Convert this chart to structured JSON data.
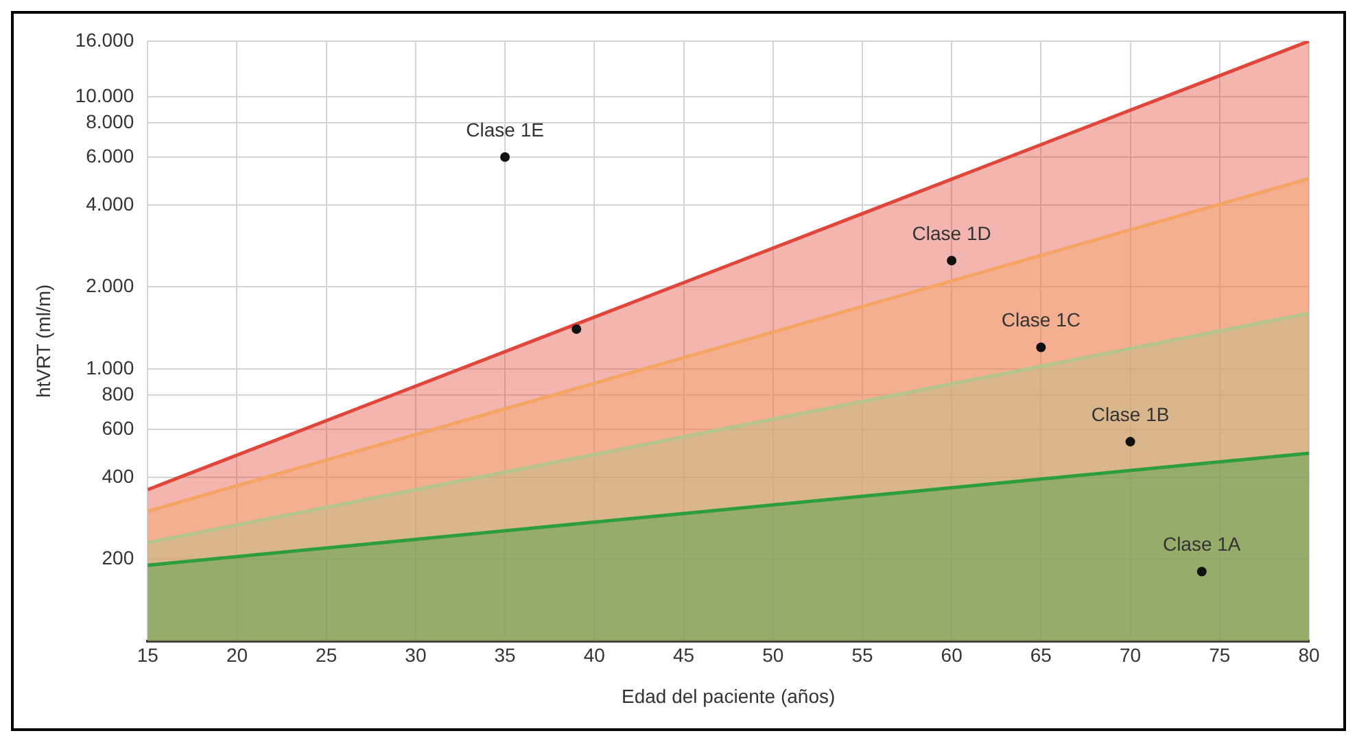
{
  "chart_data": {
    "type": "area",
    "xlabel": "Edad del paciente (años)",
    "ylabel": "htVRT (ml/m)",
    "log": "y",
    "grid": true,
    "legend": false,
    "xlim": [
      15,
      80
    ],
    "xticks": [
      15,
      20,
      25,
      30,
      35,
      40,
      45,
      50,
      55,
      60,
      65,
      70,
      75,
      80
    ],
    "ylim": [
      100,
      16000
    ],
    "yticks": [
      200,
      400,
      600,
      800,
      {
        "value": 1000,
        "label": "1.000"
      },
      {
        "value": 2000,
        "label": "2.000"
      },
      {
        "value": 4000,
        "label": "4.000"
      },
      {
        "value": 6000,
        "label": "6.000"
      },
      {
        "value": 8000,
        "label": "8.000"
      },
      {
        "value": 10000,
        "label": "10.000"
      },
      {
        "value": 16000,
        "label": "16.000"
      }
    ],
    "series": [
      {
        "x": [
          15,
          80
        ],
        "values": [
          360,
          16000
        ],
        "color": "#e0473a"
      },
      {
        "x": [
          15,
          80
        ],
        "values": [
          300,
          5000
        ],
        "color": "#f5a462"
      },
      {
        "x": [
          15,
          80
        ],
        "values": [
          230,
          1600
        ],
        "color": "#b5c48a"
      },
      {
        "x": [
          15,
          80
        ],
        "values": [
          190,
          490
        ],
        "color": "#2e9e3a"
      },
      {
        "type": "scatter",
        "x": [
          35,
          39,
          60,
          65,
          70,
          74
        ],
        "values": [
          6000,
          1400,
          2500,
          1200,
          540,
          180
        ],
        "color": "#111111",
        "marker": "circle"
      }
    ],
    "annotations": [
      {
        "text": "Clase 1E",
        "x": 35,
        "y": 6000
      },
      {
        "text": "Clase 1D",
        "x": 60,
        "y": 2500
      },
      {
        "text": "Clase 1C",
        "x": 65,
        "y": 1200
      },
      {
        "text": "Clase 1B",
        "x": 70,
        "y": 540
      },
      {
        "text": "Clase 1A",
        "x": 74,
        "y": 180
      }
    ]
  }
}
